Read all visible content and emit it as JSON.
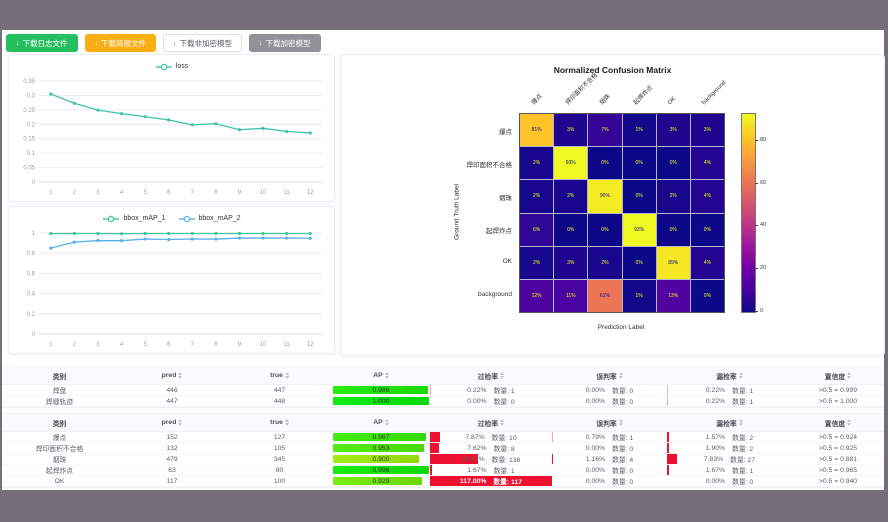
{
  "toolbar": {
    "download_icon": "↓",
    "buttons": [
      {
        "label": "下载日志文件",
        "variant": "green"
      },
      {
        "label": "下载简报文件",
        "variant": "orange"
      },
      {
        "label": "下载非加密模型",
        "variant": "plain"
      },
      {
        "label": "下载加密模型",
        "variant": "gray"
      }
    ]
  },
  "colors": {
    "frame": "#766f7a",
    "loss_line": "#3fc3ac",
    "map1_line": "#3fc79e",
    "map2_line": "#5ab0ee",
    "green_button": "#26bf5f",
    "orange_button": "#f9ae13",
    "over_bar_red": "#ee1030",
    "over_bar_pink": "#f8a8bc"
  },
  "chart_data": [
    {
      "type": "line",
      "title": "",
      "x": [
        1,
        2,
        3,
        4,
        5,
        6,
        7,
        8,
        9,
        10,
        11,
        12
      ],
      "series": [
        {
          "name": "loss",
          "color": "#3fc3ac",
          "values": [
            0.305,
            0.273,
            0.249,
            0.237,
            0.226,
            0.215,
            0.198,
            0.202,
            0.181,
            0.186,
            0.175,
            0.17
          ]
        }
      ],
      "ylim": [
        0,
        0.35
      ],
      "yticks": [
        0,
        0.05,
        0.1,
        0.15,
        0.2,
        0.25,
        0.3,
        0.35
      ],
      "legend_position": "top",
      "grid": true
    },
    {
      "type": "line",
      "title": "",
      "x": [
        1,
        2,
        3,
        4,
        5,
        6,
        7,
        8,
        9,
        10,
        11,
        12
      ],
      "series": [
        {
          "name": "bbox_mAP_1",
          "color": "#3fc79e",
          "values": [
            0.995,
            0.995,
            0.995,
            0.993,
            0.995,
            0.995,
            0.995,
            0.995,
            0.995,
            0.995,
            0.995,
            0.995
          ]
        },
        {
          "name": "bbox_mAP_2",
          "color": "#5ab0ee",
          "values": [
            0.85,
            0.91,
            0.925,
            0.924,
            0.94,
            0.936,
            0.94,
            0.94,
            0.95,
            0.95,
            0.95,
            0.948
          ]
        }
      ],
      "ylim": [
        0,
        1
      ],
      "yticks": [
        0,
        0.2,
        0.4,
        0.6,
        0.8,
        1
      ],
      "legend_position": "top",
      "grid": true
    },
    {
      "type": "heatmap",
      "title": "Normalized Confusion Matrix",
      "xlabel": "Prediction Label",
      "ylabel": "Ground Truth Label",
      "unit": "%",
      "labels": [
        "爆点",
        "焊印面积不合格",
        "烟珠",
        "起焊炸点",
        "OK",
        "background"
      ],
      "matrix": [
        [
          81,
          3,
          7,
          1,
          3,
          3
        ],
        [
          2,
          93,
          0,
          0,
          0,
          4
        ],
        [
          2,
          2,
          90,
          0,
          2,
          4
        ],
        [
          6,
          0,
          0,
          93,
          0,
          0
        ],
        [
          2,
          3,
          2,
          0,
          89,
          4
        ],
        [
          12,
          11,
          61,
          1,
          13,
          0
        ]
      ],
      "vmin": 0,
      "vmax": 93,
      "colormap": "plasma",
      "colorbar_ticks": [
        0,
        20,
        40,
        60,
        80
      ]
    }
  ],
  "tables": [
    {
      "headers": [
        "类别",
        "pred",
        "true",
        "AP",
        "过检率",
        "误判率",
        "漏检率",
        "置信度"
      ],
      "rows": [
        {
          "class": "焊盘",
          "pred": "446",
          "true": "447",
          "ap": "0.986",
          "over_pct": "0.22%",
          "over_n": "数量: 1",
          "mis_pct": "0.00%",
          "mis_n": "数量: 0",
          "miss_pct": "0.22%",
          "miss_n": "数量: 1",
          "conf": ">0.5 = 0.999"
        },
        {
          "class": "焊缝轨迹",
          "pred": "447",
          "true": "448",
          "ap": "1.000",
          "over_pct": "0.00%",
          "over_n": "数量: 0",
          "mis_pct": "0.00%",
          "mis_n": "数量: 0",
          "miss_pct": "0.22%",
          "miss_n": "数量: 1",
          "conf": ">0.5 = 1.000"
        }
      ]
    },
    {
      "headers": [
        "类别",
        "pred",
        "true",
        "AP",
        "过检率",
        "误判率",
        "漏检率",
        "置信度"
      ],
      "rows": [
        {
          "class": "爆点",
          "pred": "152",
          "true": "127",
          "ap": "0.967",
          "over_pct": "7.87%",
          "over_n": "数量: 10",
          "mis_pct": "0.79%",
          "mis_n": "数量: 1",
          "miss_pct": "1.57%",
          "miss_n": "数量: 2",
          "conf": ">0.5 = 0.924"
        },
        {
          "class": "焊印面积不合格",
          "pred": "132",
          "true": "105",
          "ap": "0.953",
          "over_pct": "7.62%",
          "over_n": "数量: 8",
          "mis_pct": "0.00%",
          "mis_n": "数量: 0",
          "miss_pct": "1.90%",
          "miss_n": "数量: 2",
          "conf": ">0.5 = 0.925"
        },
        {
          "class": "烟珠",
          "pred": "479",
          "true": "345",
          "ap": "0.900",
          "over_pct": "39.42%",
          "over_n": "数量: 136",
          "mis_pct": "1.16%",
          "mis_n": "数量: 4",
          "miss_pct": "7.83%",
          "miss_n": "数量: 27",
          "conf": ">0.5 = 0.881"
        },
        {
          "class": "起焊炸点",
          "pred": "63",
          "true": "60",
          "ap": "0.996",
          "over_pct": "1.67%",
          "over_n": "数量: 1",
          "mis_pct": "0.00%",
          "mis_n": "数量: 0",
          "miss_pct": "1.67%",
          "miss_n": "数量: 1",
          "conf": ">0.5 = 0.965"
        },
        {
          "class": "OK",
          "pred": "117",
          "true": "100",
          "ap": "0.929",
          "over_pct": "117.00%",
          "over_n": "数量: 117",
          "mis_pct": "0.00%",
          "mis_n": "数量: 0",
          "miss_pct": "0.00%",
          "miss_n": "数量: 0",
          "conf": ">0.5 = 0.940"
        }
      ]
    }
  ]
}
